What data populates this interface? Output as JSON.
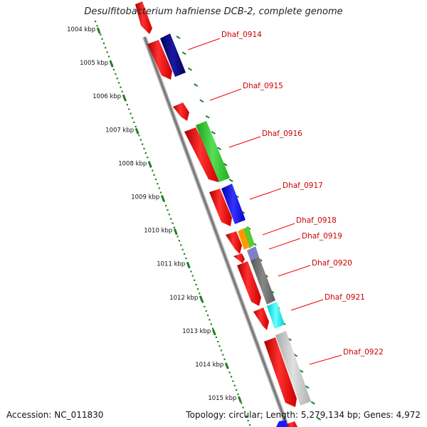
{
  "title": "Desulfitobacterium hafniense DCB-2, complete genome",
  "accession_text": "Accession: NC_011830",
  "summary_text": "Topology: circular; Length: 5,279,134 bp; Genes: 4,972",
  "scale_labels": [
    "1004 kbp",
    "1005 kbp",
    "1006 kbp",
    "1007 kbp",
    "1008 kbp",
    "1009 kbp",
    "1010 kbp",
    "1011 kbp",
    "1012 kbp",
    "1013 kbp",
    "1014 kbp",
    "1015 kbp"
  ],
  "colors": {
    "forward_gene": "#ff0000",
    "label_text": "#cc0000",
    "leader_line": "#ee0000",
    "ruler_dots": "#1f7f1f",
    "backbone": "#888888"
  },
  "genes": [
    {
      "name": "Dhaf_0914",
      "color": "#000080"
    },
    {
      "name": "Dhaf_0915",
      "color": "#000080"
    },
    {
      "name": "Dhaf_0916",
      "color": "#33cc33"
    },
    {
      "name": "Dhaf_0917",
      "color": "#0000ff"
    },
    {
      "name": "Dhaf_0918",
      "color": "#66cc33"
    },
    {
      "name": "Dhaf_0919",
      "color": "#ff9900"
    },
    {
      "name": "Dhaf_0920",
      "color": "#8080c0"
    },
    {
      "name": "Dhaf_0921",
      "color": "#00ffff"
    },
    {
      "name": "Dhaf_0922",
      "color": "#c0c0c0"
    }
  ]
}
